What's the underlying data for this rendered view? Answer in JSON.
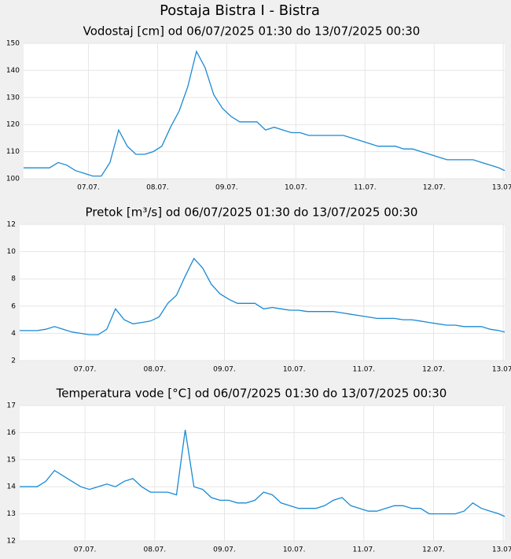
{
  "title": "Postaja Bistra I - Bistra",
  "chart_data": [
    {
      "type": "line",
      "title": "Vodostaj [cm] od 06/07/2025 01:30 do 13/07/2025 00:30",
      "x": [
        0,
        3,
        6,
        9,
        12,
        15,
        18,
        21,
        24,
        27,
        30,
        33,
        36,
        39,
        42,
        45,
        48,
        51,
        54,
        57,
        60,
        63,
        66,
        69,
        72,
        75,
        78,
        81,
        84,
        87,
        90,
        93,
        96,
        99,
        102,
        105,
        108,
        111,
        114,
        117,
        120,
        123,
        126,
        129,
        132,
        135,
        138,
        141,
        144,
        147,
        150,
        153,
        156,
        159,
        162,
        165,
        167
      ],
      "series": [
        {
          "color": "#1a8ad4",
          "values": [
            104,
            104,
            104,
            104,
            106,
            105,
            103,
            102,
            101,
            101,
            106,
            118,
            112,
            109,
            109,
            110,
            112,
            119,
            125,
            134,
            147,
            141,
            131,
            126,
            123,
            121,
            121,
            121,
            118,
            119,
            118,
            117,
            117,
            116,
            116,
            116,
            116,
            116,
            115,
            114,
            113,
            112,
            112,
            112,
            111,
            111,
            110,
            109,
            108,
            107,
            107,
            107,
            107,
            106,
            105,
            104,
            103
          ]
        }
      ],
      "xlim": [
        0,
        167
      ],
      "xticks": [
        {
          "value": 22.5,
          "label": "07.07."
        },
        {
          "value": 46.5,
          "label": "08.07."
        },
        {
          "value": 70.5,
          "label": "09.07."
        },
        {
          "value": 94.5,
          "label": "10.07."
        },
        {
          "value": 118.5,
          "label": "11.07."
        },
        {
          "value": 142.5,
          "label": "12.07."
        },
        {
          "value": 166.5,
          "label": "13.07."
        }
      ],
      "ylim": [
        100,
        150
      ],
      "yticks": [
        100,
        110,
        120,
        130,
        140,
        150
      ],
      "grid": true
    },
    {
      "type": "line",
      "title": "Pretok [m³/s] od 06/07/2025 01:30 do 13/07/2025 00:30",
      "x": [
        0,
        3,
        6,
        9,
        12,
        15,
        18,
        21,
        24,
        27,
        30,
        33,
        36,
        39,
        42,
        45,
        48,
        51,
        54,
        57,
        60,
        63,
        66,
        69,
        72,
        75,
        78,
        81,
        84,
        87,
        90,
        93,
        96,
        99,
        102,
        105,
        108,
        111,
        114,
        117,
        120,
        123,
        126,
        129,
        132,
        135,
        138,
        141,
        144,
        147,
        150,
        153,
        156,
        159,
        162,
        165,
        167
      ],
      "series": [
        {
          "color": "#1a8ad4",
          "values": [
            4.2,
            4.2,
            4.2,
            4.3,
            4.5,
            4.3,
            4.1,
            4.0,
            3.9,
            3.9,
            4.3,
            5.8,
            5.0,
            4.7,
            4.8,
            4.9,
            5.2,
            6.2,
            6.8,
            8.2,
            9.5,
            8.8,
            7.6,
            6.9,
            6.5,
            6.2,
            6.2,
            6.2,
            5.8,
            5.9,
            5.8,
            5.7,
            5.7,
            5.6,
            5.6,
            5.6,
            5.6,
            5.5,
            5.4,
            5.3,
            5.2,
            5.1,
            5.1,
            5.1,
            5.0,
            5.0,
            4.9,
            4.8,
            4.7,
            4.6,
            4.6,
            4.5,
            4.5,
            4.5,
            4.3,
            4.2,
            4.1
          ]
        }
      ],
      "xlim": [
        0,
        167
      ],
      "xticks": [
        {
          "value": 22.5,
          "label": "07.07."
        },
        {
          "value": 46.5,
          "label": "08.07."
        },
        {
          "value": 70.5,
          "label": "09.07."
        },
        {
          "value": 94.5,
          "label": "10.07."
        },
        {
          "value": 118.5,
          "label": "11.07."
        },
        {
          "value": 142.5,
          "label": "12.07."
        },
        {
          "value": 166.5,
          "label": "13.07."
        }
      ],
      "ylim": [
        2,
        12
      ],
      "yticks": [
        2,
        4,
        6,
        8,
        10,
        12
      ],
      "grid": true
    },
    {
      "type": "line",
      "title": "Temperatura vode [°C] od 06/07/2025 01:30 do 13/07/2025 00:30",
      "x": [
        0,
        3,
        6,
        9,
        12,
        15,
        18,
        21,
        24,
        27,
        30,
        33,
        36,
        39,
        42,
        45,
        48,
        51,
        54,
        57,
        60,
        63,
        66,
        69,
        72,
        75,
        78,
        81,
        84,
        87,
        90,
        93,
        96,
        99,
        102,
        105,
        108,
        111,
        114,
        117,
        120,
        123,
        126,
        129,
        132,
        135,
        138,
        141,
        144,
        147,
        150,
        153,
        156,
        159,
        162,
        165,
        167
      ],
      "series": [
        {
          "color": "#1a8ad4",
          "values": [
            14.0,
            14.0,
            14.0,
            14.2,
            14.6,
            14.4,
            14.2,
            14.0,
            13.9,
            14.0,
            14.1,
            14.0,
            14.2,
            14.3,
            14.0,
            13.8,
            13.8,
            13.8,
            13.7,
            16.1,
            14.0,
            13.9,
            13.6,
            13.5,
            13.5,
            13.4,
            13.4,
            13.5,
            13.8,
            13.7,
            13.4,
            13.3,
            13.2,
            13.2,
            13.2,
            13.3,
            13.5,
            13.6,
            13.3,
            13.2,
            13.1,
            13.1,
            13.2,
            13.3,
            13.3,
            13.2,
            13.2,
            13.0,
            13.0,
            13.0,
            13.0,
            13.1,
            13.4,
            13.2,
            13.1,
            13.0,
            12.9
          ]
        }
      ],
      "xlim": [
        0,
        167
      ],
      "xticks": [
        {
          "value": 22.5,
          "label": "07.07."
        },
        {
          "value": 46.5,
          "label": "08.07."
        },
        {
          "value": 70.5,
          "label": "09.07."
        },
        {
          "value": 94.5,
          "label": "10.07."
        },
        {
          "value": 118.5,
          "label": "11.07."
        },
        {
          "value": 142.5,
          "label": "12.07."
        },
        {
          "value": 166.5,
          "label": "13.07."
        }
      ],
      "ylim": [
        12,
        17
      ],
      "yticks": [
        12,
        13,
        14,
        15,
        16,
        17
      ],
      "grid": true
    }
  ]
}
